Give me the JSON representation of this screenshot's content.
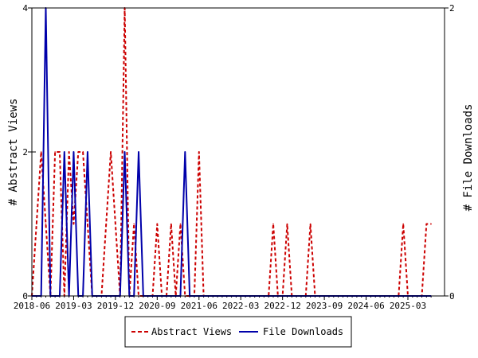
{
  "chart_data": {
    "type": "line",
    "left_axis_label": "# Abstract Views",
    "right_axis_label": "# File Downloads",
    "left_ylim": [
      0,
      4
    ],
    "right_ylim": [
      0,
      2
    ],
    "left_ticks": [
      "0",
      "2",
      "4"
    ],
    "right_ticks": [
      "0",
      "2"
    ],
    "x_tick_labels": [
      "2018-06",
      "2019-03",
      "2019-12",
      "2020-09",
      "2021-06",
      "2022-03",
      "2022-12",
      "2023-09",
      "2024-06",
      "2025-03"
    ],
    "legend_position": "bottom",
    "grid": false,
    "series": [
      {
        "name": "Abstract Views",
        "axis": "left",
        "color": "#cc0000",
        "style": "dashed",
        "points": [
          [
            "2018-06",
            0
          ],
          [
            "2018-07",
            1
          ],
          [
            "2018-08",
            2
          ],
          [
            "2018-09",
            1
          ],
          [
            "2018-10",
            0
          ],
          [
            "2018-11",
            2
          ],
          [
            "2018-12",
            2
          ],
          [
            "2019-01",
            0
          ],
          [
            "2019-02",
            2
          ],
          [
            "2019-03",
            1
          ],
          [
            "2019-04",
            2
          ],
          [
            "2019-05",
            2
          ],
          [
            "2019-06",
            1
          ],
          [
            "2019-07",
            0
          ],
          [
            "2019-08",
            0
          ],
          [
            "2019-09",
            0
          ],
          [
            "2019-10",
            1
          ],
          [
            "2019-11",
            2
          ],
          [
            "2019-12",
            1
          ],
          [
            "2020-01",
            0
          ],
          [
            "2020-02",
            4
          ],
          [
            "2020-03",
            0
          ],
          [
            "2020-04",
            1
          ],
          [
            "2020-05",
            0
          ],
          [
            "2020-06",
            0
          ],
          [
            "2020-07",
            0
          ],
          [
            "2020-08",
            0
          ],
          [
            "2020-09",
            1
          ],
          [
            "2020-10",
            0
          ],
          [
            "2020-11",
            0
          ],
          [
            "2020-12",
            1
          ],
          [
            "2021-01",
            0
          ],
          [
            "2021-02",
            1
          ],
          [
            "2021-03",
            0
          ],
          [
            "2021-04",
            0
          ],
          [
            "2021-05",
            0
          ],
          [
            "2021-06",
            2
          ],
          [
            "2021-07",
            0
          ],
          [
            "2021-08",
            0
          ],
          [
            "2021-09",
            0
          ],
          [
            "2021-10",
            0
          ],
          [
            "2021-11",
            0
          ],
          [
            "2021-12",
            0
          ],
          [
            "2022-01",
            0
          ],
          [
            "2022-02",
            0
          ],
          [
            "2022-03",
            0
          ],
          [
            "2022-04",
            0
          ],
          [
            "2022-05",
            0
          ],
          [
            "2022-06",
            0
          ],
          [
            "2022-07",
            0
          ],
          [
            "2022-08",
            0
          ],
          [
            "2022-09",
            0
          ],
          [
            "2022-10",
            1
          ],
          [
            "2022-11",
            0
          ],
          [
            "2022-12",
            0
          ],
          [
            "2023-01",
            1
          ],
          [
            "2023-02",
            0
          ],
          [
            "2023-03",
            0
          ],
          [
            "2023-04",
            0
          ],
          [
            "2023-05",
            0
          ],
          [
            "2023-06",
            1
          ],
          [
            "2023-07",
            0
          ],
          [
            "2023-08",
            0
          ],
          [
            "2023-09",
            0
          ],
          [
            "2023-10",
            0
          ],
          [
            "2023-11",
            0
          ],
          [
            "2023-12",
            0
          ],
          [
            "2024-01",
            0
          ],
          [
            "2024-02",
            0
          ],
          [
            "2024-03",
            0
          ],
          [
            "2024-04",
            0
          ],
          [
            "2024-05",
            0
          ],
          [
            "2024-06",
            0
          ],
          [
            "2024-07",
            0
          ],
          [
            "2024-08",
            0
          ],
          [
            "2024-09",
            0
          ],
          [
            "2024-10",
            0
          ],
          [
            "2024-11",
            0
          ],
          [
            "2024-12",
            0
          ],
          [
            "2025-01",
            0
          ],
          [
            "2025-02",
            1
          ],
          [
            "2025-03",
            0
          ],
          [
            "2025-04",
            0
          ],
          [
            "2025-05",
            0
          ],
          [
            "2025-06",
            0
          ],
          [
            "2025-07",
            1
          ],
          [
            "2025-08",
            1
          ]
        ]
      },
      {
        "name": "File Downloads",
        "axis": "right",
        "color": "#0000aa",
        "style": "solid",
        "points": [
          [
            "2018-06",
            0
          ],
          [
            "2018-07",
            0
          ],
          [
            "2018-08",
            0
          ],
          [
            "2018-09",
            2
          ],
          [
            "2018-10",
            0
          ],
          [
            "2018-11",
            0
          ],
          [
            "2018-12",
            0
          ],
          [
            "2019-01",
            1
          ],
          [
            "2019-02",
            0
          ],
          [
            "2019-03",
            1
          ],
          [
            "2019-04",
            0
          ],
          [
            "2019-05",
            0
          ],
          [
            "2019-06",
            1
          ],
          [
            "2019-07",
            0
          ],
          [
            "2019-08",
            0
          ],
          [
            "2019-09",
            0
          ],
          [
            "2019-10",
            0
          ],
          [
            "2019-11",
            0
          ],
          [
            "2019-12",
            0
          ],
          [
            "2020-01",
            0
          ],
          [
            "2020-02",
            1
          ],
          [
            "2020-03",
            0
          ],
          [
            "2020-04",
            0
          ],
          [
            "2020-05",
            1
          ],
          [
            "2020-06",
            0
          ],
          [
            "2020-07",
            0
          ],
          [
            "2020-08",
            0
          ],
          [
            "2020-09",
            0
          ],
          [
            "2020-10",
            0
          ],
          [
            "2020-11",
            0
          ],
          [
            "2020-12",
            0
          ],
          [
            "2021-01",
            0
          ],
          [
            "2021-02",
            0
          ],
          [
            "2021-03",
            1
          ],
          [
            "2021-04",
            0
          ],
          [
            "2021-05",
            0
          ],
          [
            "2021-06",
            0
          ],
          [
            "2021-07",
            0
          ],
          [
            "2021-08",
            0
          ],
          [
            "2021-09",
            0
          ],
          [
            "2021-10",
            0
          ],
          [
            "2021-11",
            0
          ],
          [
            "2021-12",
            0
          ],
          [
            "2022-01",
            0
          ],
          [
            "2022-02",
            0
          ],
          [
            "2022-03",
            0
          ],
          [
            "2022-04",
            0
          ],
          [
            "2022-05",
            0
          ],
          [
            "2022-06",
            0
          ],
          [
            "2022-07",
            0
          ],
          [
            "2022-08",
            0
          ],
          [
            "2022-09",
            0
          ],
          [
            "2022-10",
            0
          ],
          [
            "2022-11",
            0
          ],
          [
            "2022-12",
            0
          ],
          [
            "2023-01",
            0
          ],
          [
            "2023-02",
            0
          ],
          [
            "2023-03",
            0
          ],
          [
            "2023-04",
            0
          ],
          [
            "2023-05",
            0
          ],
          [
            "2023-06",
            0
          ],
          [
            "2023-07",
            0
          ],
          [
            "2023-08",
            0
          ],
          [
            "2023-09",
            0
          ],
          [
            "2023-10",
            0
          ],
          [
            "2023-11",
            0
          ],
          [
            "2023-12",
            0
          ],
          [
            "2024-01",
            0
          ],
          [
            "2024-02",
            0
          ],
          [
            "2024-03",
            0
          ],
          [
            "2024-04",
            0
          ],
          [
            "2024-05",
            0
          ],
          [
            "2024-06",
            0
          ],
          [
            "2024-07",
            0
          ],
          [
            "2024-08",
            0
          ],
          [
            "2024-09",
            0
          ],
          [
            "2024-10",
            0
          ],
          [
            "2024-11",
            0
          ],
          [
            "2024-12",
            0
          ],
          [
            "2025-01",
            0
          ],
          [
            "2025-02",
            0
          ],
          [
            "2025-03",
            0
          ],
          [
            "2025-04",
            0
          ],
          [
            "2025-05",
            0
          ],
          [
            "2025-06",
            0
          ],
          [
            "2025-07",
            0
          ],
          [
            "2025-08",
            0
          ]
        ]
      }
    ]
  }
}
